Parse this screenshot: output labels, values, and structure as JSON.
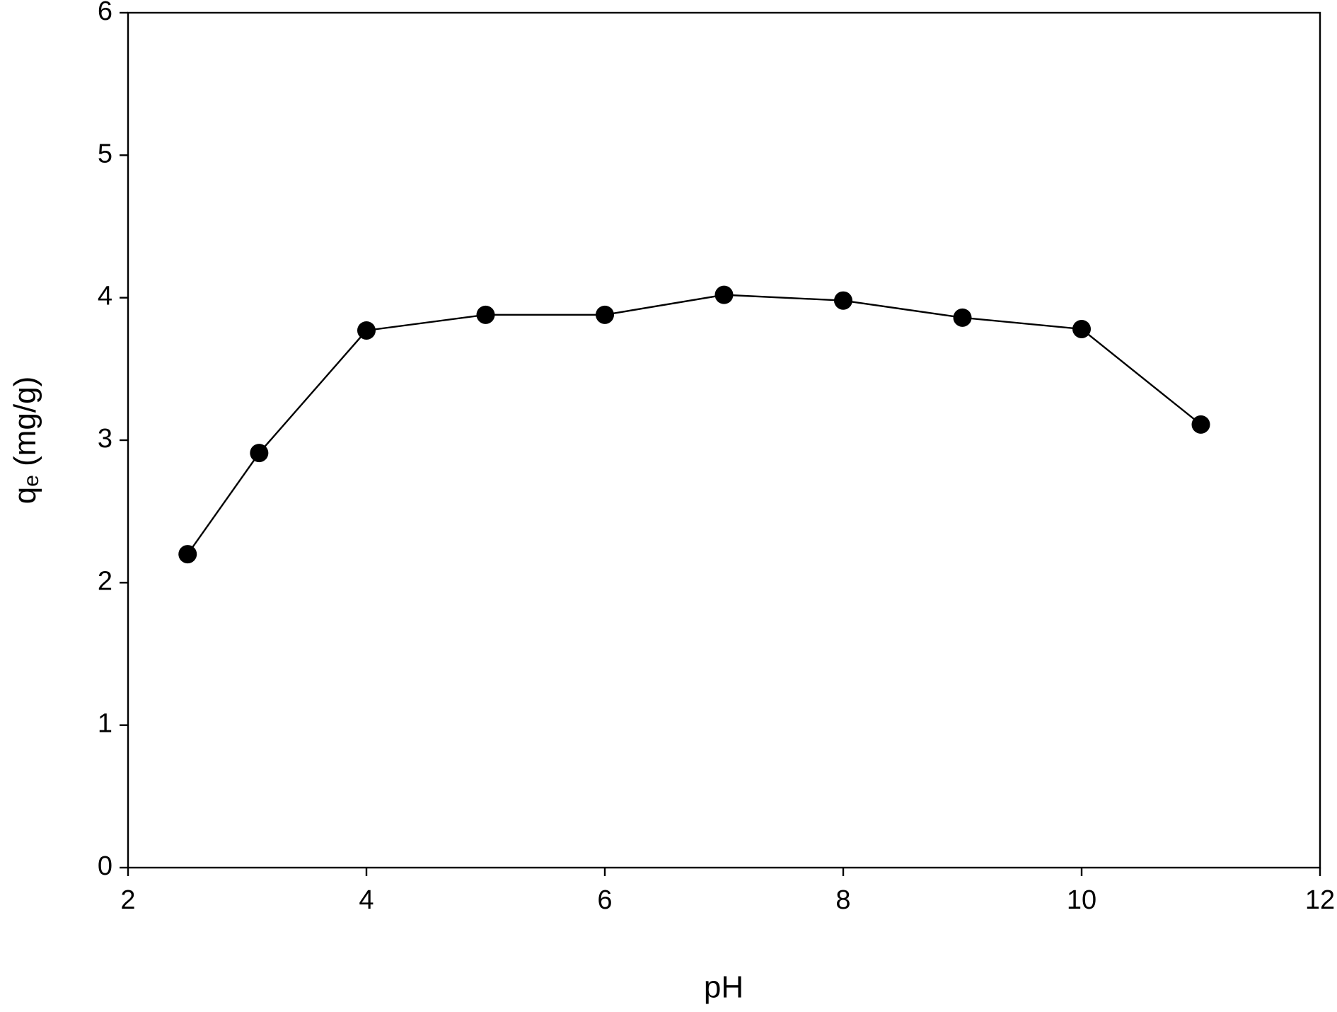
{
  "chart_data": {
    "type": "line",
    "xlabel": "pH",
    "ylabel": [
      "q",
      "e",
      " (mg/g)"
    ],
    "x": [
      2.5,
      3.1,
      4,
      5,
      6,
      7,
      8,
      9,
      10,
      11
    ],
    "series": [
      {
        "color": "#000000",
        "values": [
          2.2,
          2.91,
          3.77,
          3.88,
          3.88,
          4.02,
          3.98,
          3.86,
          3.78,
          3.11
        ]
      }
    ],
    "xlim": [
      2,
      12
    ],
    "xticks": [
      2,
      4,
      6,
      8,
      10,
      12
    ],
    "ylim": [
      0,
      6
    ],
    "yticks": [
      0,
      1,
      2,
      3,
      4,
      5,
      6
    ],
    "grid": false
  }
}
